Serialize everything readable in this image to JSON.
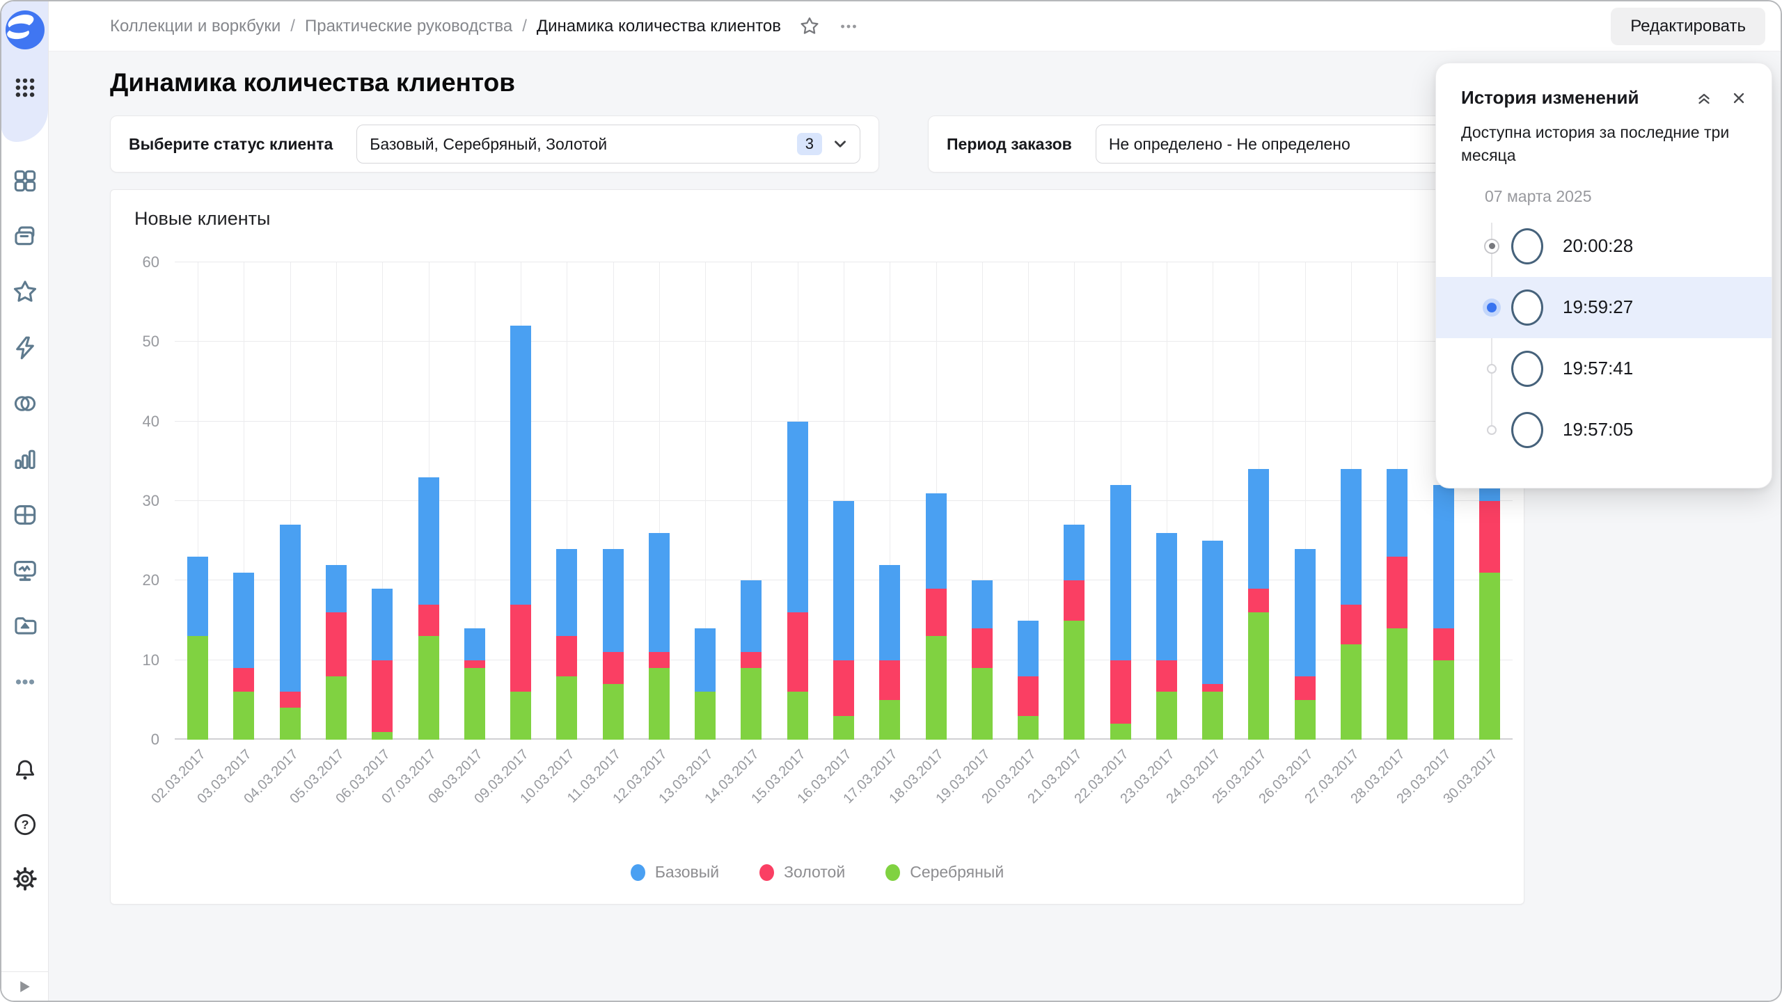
{
  "breadcrumb": {
    "items": [
      "Коллекции и воркбуки",
      "Практические руководства",
      "Динамика количества клиентов"
    ],
    "separator": "/"
  },
  "header": {
    "edit_button": "Редактировать"
  },
  "page": {
    "title": "Динамика количества клиентов"
  },
  "filters": {
    "status": {
      "label": "Выберите статус клиента",
      "value": "Базовый, Серебряный, Золотой",
      "count_badge": "3"
    },
    "period": {
      "label": "Период заказов",
      "value": "Не определено - Не определено"
    }
  },
  "sidebar": {
    "icons": [
      "datalens-logo",
      "apps-grid",
      "overview-squares",
      "collections-folders",
      "favorites-star",
      "connections-lightning",
      "datasets-circles",
      "charts-bars",
      "dashboards-table",
      "monitoring-screen",
      "storage-folder",
      "more-ellipsis",
      "notifications-bell",
      "help-question",
      "settings-gear",
      "expand-play"
    ]
  },
  "history_panel": {
    "title": "История изменений",
    "subtitle": "Доступна история за последние три месяца",
    "date_group": "07 марта 2025",
    "entries": [
      {
        "time": "20:00:28",
        "state": "current"
      },
      {
        "time": "19:59:27",
        "state": "selected"
      },
      {
        "time": "19:57:41",
        "state": "default"
      },
      {
        "time": "19:57:05",
        "state": "default"
      }
    ]
  },
  "chart_data": {
    "type": "bar",
    "stacked": true,
    "title": "Новые клиенты",
    "xlabel": "",
    "ylabel": "",
    "ylim": [
      0,
      60
    ],
    "yticks": [
      0,
      10,
      20,
      30,
      40,
      50,
      60
    ],
    "grid": true,
    "legend_position": "bottom",
    "categories": [
      "02.03.2017",
      "03.03.2017",
      "04.03.2017",
      "05.03.2017",
      "06.03.2017",
      "07.03.2017",
      "08.03.2017",
      "09.03.2017",
      "10.03.2017",
      "11.03.2017",
      "12.03.2017",
      "13.03.2017",
      "14.03.2017",
      "15.03.2017",
      "16.03.2017",
      "17.03.2017",
      "18.03.2017",
      "19.03.2017",
      "20.03.2017",
      "21.03.2017",
      "22.03.2017",
      "23.03.2017",
      "24.03.2017",
      "25.03.2017",
      "26.03.2017",
      "27.03.2017",
      "28.03.2017",
      "29.03.2017",
      "30.03.2017"
    ],
    "series": [
      {
        "name": "Серебряный",
        "color": "#80D241",
        "values": [
          13,
          6,
          4,
          8,
          1,
          13,
          9,
          6,
          8,
          7,
          9,
          6,
          9,
          6,
          3,
          5,
          13,
          9,
          3,
          15,
          2,
          6,
          6,
          16,
          5,
          12,
          14,
          10,
          21
        ]
      },
      {
        "name": "Золотой",
        "color": "#FA3F63",
        "values": [
          0,
          3,
          2,
          8,
          9,
          4,
          1,
          11,
          5,
          4,
          2,
          0,
          2,
          10,
          7,
          5,
          6,
          5,
          5,
          5,
          8,
          4,
          1,
          3,
          3,
          5,
          9,
          4,
          9
        ]
      },
      {
        "name": "Базовый",
        "color": "#4AA0F2",
        "values": [
          10,
          12,
          21,
          6,
          9,
          16,
          4,
          35,
          11,
          13,
          15,
          8,
          9,
          24,
          20,
          12,
          12,
          6,
          7,
          7,
          22,
          16,
          18,
          15,
          16,
          17,
          11,
          18,
          3
        ]
      }
    ],
    "legend": [
      {
        "label": "Базовый",
        "color": "#4AA0F2"
      },
      {
        "label": "Золотой",
        "color": "#FA3F63"
      },
      {
        "label": "Серебряный",
        "color": "#80D241"
      }
    ]
  }
}
